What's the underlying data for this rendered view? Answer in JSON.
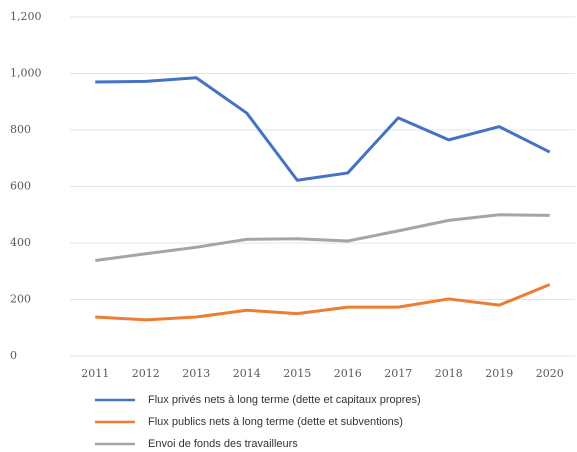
{
  "chart_data": {
    "type": "line",
    "categories": [
      "2011",
      "2012",
      "2013",
      "2014",
      "2015",
      "2016",
      "2017",
      "2018",
      "2019",
      "2020"
    ],
    "series": [
      {
        "name": "Flux privés nets à long terme (dette et capitaux propres)",
        "color": "#4472c4",
        "values": [
          970,
          972,
          985,
          860,
          622,
          648,
          843,
          765,
          812,
          722
        ]
      },
      {
        "name": "Flux publics nets à long terme (dette et subventions)",
        "color": "#ed7d31",
        "values": [
          138,
          128,
          138,
          162,
          150,
          173,
          173,
          202,
          180,
          253
        ]
      },
      {
        "name": "Envoi de fonds des travailleurs",
        "color": "#a5a5a5",
        "values": [
          338,
          362,
          385,
          413,
          415,
          407,
          443,
          480,
          500,
          498
        ]
      }
    ],
    "ylim": [
      0,
      1200
    ],
    "yticks": [
      0,
      200,
      400,
      600,
      800,
      {
        "value": 1000,
        "label": "1,000"
      },
      {
        "value": 1200,
        "label": "1,200"
      }
    ],
    "grid": true,
    "legend": "bottom"
  }
}
